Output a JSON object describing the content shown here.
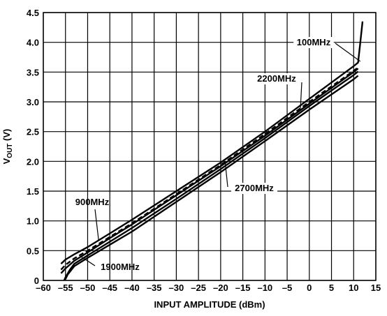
{
  "chart_data": {
    "type": "line",
    "xlabel": "INPUT AMPLITUDE (dBm)",
    "ylabel": {
      "main": "V",
      "sub": "OUT",
      "unit": " (V)"
    },
    "xlim": [
      -60,
      15
    ],
    "ylim": [
      0,
      4.5
    ],
    "xticks": [
      -60,
      -55,
      -50,
      -45,
      -40,
      -35,
      -30,
      -25,
      -20,
      -15,
      -10,
      -5,
      0,
      5,
      10,
      15
    ],
    "yticks": [
      0,
      0.5,
      1.0,
      1.5,
      2.0,
      2.5,
      3.0,
      3.5,
      4.0,
      4.5
    ],
    "xtick_labels": [
      "–60",
      "–55",
      "–50",
      "–45",
      "–40",
      "–35",
      "–30",
      "–25",
      "–20",
      "–15",
      "–10",
      "–5",
      "0",
      "5",
      "10",
      "15"
    ],
    "ytick_labels": [
      "0",
      "0.5",
      "1.0",
      "1.5",
      "2.0",
      "2.5",
      "3.0",
      "3.5",
      "4.0",
      "4.5"
    ],
    "grid": true,
    "series": [
      {
        "name": "100MHz",
        "dashed": false,
        "x": [
          -56,
          -55,
          -53,
          -50,
          -45,
          -40,
          -30,
          -20,
          -10,
          0,
          10,
          11,
          11.5,
          12
        ],
        "y": [
          0.28,
          0.35,
          0.44,
          0.56,
          0.79,
          1.02,
          1.5,
          1.98,
          2.5,
          3.05,
          3.6,
          3.66,
          4.0,
          4.35
        ]
      },
      {
        "name": "2200MHz",
        "dashed": true,
        "x": [
          -56,
          -55,
          -53,
          -50,
          -45,
          -40,
          -30,
          -20,
          -10,
          0,
          10,
          11
        ],
        "y": [
          0.18,
          0.26,
          0.37,
          0.5,
          0.73,
          0.96,
          1.45,
          1.94,
          2.46,
          3.0,
          3.52,
          3.58
        ]
      },
      {
        "name": "900MHz",
        "dashed": false,
        "x": [
          -56,
          -55,
          -53,
          -50,
          -45,
          -40,
          -30,
          -20,
          -10,
          0,
          10,
          11
        ],
        "y": [
          0.12,
          0.2,
          0.33,
          0.47,
          0.71,
          0.94,
          1.43,
          1.92,
          2.43,
          2.97,
          3.5,
          3.56
        ]
      },
      {
        "name": "1900MHz",
        "dashed": false,
        "x": [
          -55,
          -54.5,
          -53,
          -50,
          -45,
          -40,
          -30,
          -20,
          -10,
          0,
          10,
          11
        ],
        "y": [
          0.02,
          0.1,
          0.24,
          0.38,
          0.6,
          0.82,
          1.32,
          1.82,
          2.34,
          2.87,
          3.38,
          3.44
        ]
      },
      {
        "name": "2700MHz",
        "dashed": false,
        "x": [
          -55.3,
          -55,
          -54,
          -53,
          -50,
          -45,
          -40,
          -30,
          -20,
          -10,
          0,
          10,
          11
        ],
        "y": [
          0,
          0.05,
          0.18,
          0.28,
          0.42,
          0.65,
          0.88,
          1.37,
          1.87,
          2.39,
          2.93,
          3.45,
          3.51
        ]
      }
    ],
    "annotations": [
      {
        "text": "100MHz",
        "series": "100MHz"
      },
      {
        "text": "2200MHz",
        "series": "2200MHz"
      },
      {
        "text": "900MHz",
        "series": "900MHz"
      },
      {
        "text": "1900MHz",
        "series": "1900MHz"
      },
      {
        "text": "2700MHz",
        "series": "2700MHz"
      }
    ]
  }
}
